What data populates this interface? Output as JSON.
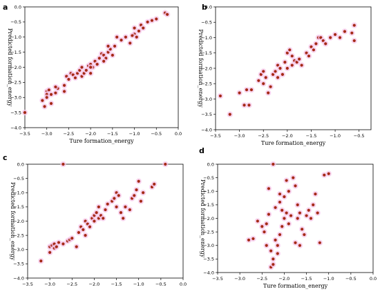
{
  "figure": {
    "panels": [
      "a",
      "b",
      "c",
      "d"
    ]
  },
  "chart_data": [
    {
      "panel": "a",
      "type": "scatter",
      "xlabel": "Ture formation_energy",
      "ylabel": "Predicted formation_energy",
      "xlim": [
        -3.5,
        0.0
      ],
      "ylim": [
        -4.0,
        0.0
      ],
      "xticks": [
        "−3.5",
        "−3.0",
        "−2.5",
        "−2.0",
        "−1.5",
        "−1.0",
        "−0.5",
        "0.0"
      ],
      "yticks": [
        "−4.0",
        "−3.5",
        "−3.0",
        "−2.5",
        "−2.0",
        "−1.5",
        "−1.0",
        "−0.5",
        "0.0"
      ],
      "color": "#a52a16",
      "x": [
        -3.5,
        -3.1,
        -3.05,
        -3.0,
        -3.0,
        -3.0,
        -2.95,
        -2.9,
        -2.9,
        -2.8,
        -2.75,
        -2.6,
        -2.55,
        -2.5,
        -2.45,
        -2.4,
        -2.35,
        -2.3,
        -2.25,
        -2.2,
        -2.2,
        -2.15,
        -2.1,
        -2.05,
        -2.0,
        -2.0,
        -1.95,
        -1.9,
        -1.85,
        -1.8,
        -1.75,
        -1.7,
        -1.65,
        -1.6,
        -1.55,
        -1.5,
        -1.45,
        -1.4,
        -1.3,
        -1.2,
        -1.1,
        -1.0,
        -1.0,
        -0.95,
        -0.9,
        -0.85,
        -0.8,
        -0.7,
        -0.6,
        -0.5,
        -0.3,
        -0.25,
        -1.6,
        -1.7,
        -2.6,
        -2.8,
        -2.0,
        -1.05
      ],
      "y": [
        -3.5,
        -3.1,
        -3.3,
        -2.8,
        -2.9,
        -3.0,
        -2.75,
        -2.9,
        -3.2,
        -2.85,
        -2.7,
        -2.8,
        -2.3,
        -2.4,
        -2.2,
        -2.25,
        -2.35,
        -2.2,
        -2.1,
        -2.3,
        -2.0,
        -2.2,
        -2.1,
        -1.95,
        -2.2,
        -1.9,
        -2.0,
        -1.8,
        -1.9,
        -1.7,
        -1.55,
        -1.6,
        -1.7,
        -1.5,
        -1.4,
        -1.6,
        -1.3,
        -1.0,
        -1.1,
        -1.0,
        -1.2,
        -0.7,
        -0.9,
        -1.0,
        -0.8,
        -0.6,
        -0.7,
        -0.5,
        -0.45,
        -0.4,
        -0.2,
        -0.25,
        -1.3,
        -1.8,
        -2.6,
        -2.65,
        -2.0,
        -0.95
      ]
    },
    {
      "panel": "b",
      "type": "scatter",
      "xlabel": "Ture formation_energy",
      "ylabel": "Predicted formation_energy",
      "xlim": [
        -3.5,
        -0.25
      ],
      "ylim": [
        -4.0,
        0.0
      ],
      "xticks": [
        "−3.5",
        "−3.0",
        "−2.5",
        "−2.0",
        "−1.5",
        "−1.0",
        "−0.5"
      ],
      "yticks": [
        "−4.0",
        "−3.5",
        "−3.0",
        "−2.5",
        "−2.0",
        "−1.5",
        "−1.0",
        "−0.5",
        "0.0"
      ],
      "color": "#a52a16",
      "x": [
        -3.4,
        -3.2,
        -3.0,
        -2.9,
        -2.85,
        -2.8,
        -2.75,
        -2.6,
        -2.55,
        -2.5,
        -2.5,
        -2.45,
        -2.4,
        -2.35,
        -2.3,
        -2.25,
        -2.2,
        -2.2,
        -2.15,
        -2.1,
        -2.05,
        -2.0,
        -2.0,
        -1.95,
        -1.9,
        -1.9,
        -1.85,
        -1.8,
        -1.75,
        -1.7,
        -1.6,
        -1.55,
        -1.5,
        -1.45,
        -1.4,
        -1.35,
        -1.3,
        -1.25,
        -1.2,
        -1.1,
        -1.0,
        -0.9,
        -0.8,
        -0.65,
        -0.6,
        -0.6
      ],
      "y": [
        -2.9,
        -3.5,
        -2.8,
        -3.2,
        -2.7,
        -3.2,
        -2.7,
        -2.4,
        -2.2,
        -2.1,
        -2.5,
        -2.3,
        -2.8,
        -2.6,
        -2.2,
        -2.1,
        -2.3,
        -1.9,
        -2.0,
        -2.2,
        -1.8,
        -1.5,
        -2.0,
        -1.4,
        -1.9,
        -1.6,
        -1.75,
        -1.8,
        -1.7,
        -1.9,
        -1.5,
        -1.6,
        -1.3,
        -1.4,
        -1.2,
        -1.0,
        -1.0,
        -1.1,
        -1.2,
        -1.0,
        -0.9,
        -1.0,
        -0.8,
        -0.85,
        -1.1,
        -0.6
      ]
    },
    {
      "panel": "c",
      "type": "scatter",
      "xlabel": "",
      "ylabel": "Predicted formation_energy",
      "xlim": [
        -3.5,
        0.0
      ],
      "ylim": [
        -4.0,
        0.0
      ],
      "xticks": [
        "−3.5",
        "−3.0",
        "−2.5",
        "−2.0",
        "−1.5",
        "−1.0",
        "−0.5",
        "0.0"
      ],
      "yticks": [
        "−4.0",
        "−3.5",
        "−3.0",
        "−2.5",
        "−2.0",
        "−1.5",
        "−1.0",
        "−0.5",
        "0.0"
      ],
      "color": "#a52a16",
      "x": [
        -3.2,
        -3.0,
        -3.0,
        -2.95,
        -2.9,
        -2.9,
        -2.85,
        -2.8,
        -2.7,
        -2.6,
        -2.55,
        -2.5,
        -2.4,
        -2.35,
        -2.3,
        -2.25,
        -2.2,
        -2.2,
        -2.15,
        -2.1,
        -2.05,
        -2.0,
        -2.0,
        -1.95,
        -1.9,
        -1.9,
        -1.85,
        -1.8,
        -1.75,
        -1.7,
        -1.6,
        -1.55,
        -1.5,
        -1.5,
        -1.45,
        -1.4,
        -1.35,
        -1.3,
        -1.2,
        -1.15,
        -1.1,
        -1.05,
        -1.0,
        -0.95,
        -0.9,
        -0.7,
        -0.65,
        -0.4,
        -2.7
      ],
      "y": [
        -3.4,
        -2.9,
        -3.1,
        -2.85,
        -2.95,
        -2.8,
        -2.9,
        -2.75,
        -2.8,
        -2.7,
        -2.65,
        -2.6,
        -2.9,
        -2.4,
        -2.2,
        -2.3,
        -2.5,
        -2.0,
        -2.1,
        -2.2,
        -1.9,
        -1.8,
        -2.0,
        -1.7,
        -1.5,
        -1.9,
        -1.8,
        -1.9,
        -1.6,
        -1.4,
        -1.3,
        -1.2,
        -1.5,
        -1.0,
        -1.1,
        -1.7,
        -1.9,
        -1.5,
        -1.6,
        -1.2,
        -1.1,
        -0.9,
        -0.6,
        -1.3,
        -1.0,
        -0.8,
        -0.7,
        0.0,
        0.0
      ]
    },
    {
      "panel": "d",
      "type": "scatter",
      "xlabel": "Ture formation_energy",
      "ylabel": "Predicted formation_energy",
      "xlim": [
        -3.5,
        0.0
      ],
      "ylim": [
        -4.0,
        0.0
      ],
      "xticks": [
        "−3.5",
        "−3.0",
        "−2.5",
        "−2.0",
        "−1.5",
        "−1.0",
        "−0.5",
        "0.0"
      ],
      "yticks": [
        "−4.0",
        "−3.5",
        "−3.0",
        "−2.5",
        "−2.0",
        "−1.5",
        "−1.0",
        "−0.5",
        "0.0"
      ],
      "color": "#a52a16",
      "x": [
        -2.8,
        -2.7,
        -2.6,
        -2.5,
        -2.45,
        -2.4,
        -2.4,
        -2.35,
        -2.3,
        -2.3,
        -2.25,
        -2.25,
        -2.2,
        -2.2,
        -2.15,
        -2.1,
        -2.1,
        -2.05,
        -2.05,
        -2.0,
        -2.0,
        -1.95,
        -1.9,
        -1.9,
        -1.85,
        -1.8,
        -1.75,
        -1.7,
        -1.7,
        -1.65,
        -1.6,
        -1.55,
        -1.5,
        -1.45,
        -1.4,
        -1.35,
        -1.3,
        -1.25,
        -1.2,
        -1.1,
        -1.0,
        -2.35,
        -2.25,
        -2.15,
        -1.75,
        -1.65,
        -2.1,
        -1.95
      ],
      "y": [
        -2.8,
        -2.75,
        -2.1,
        -2.3,
        -2.5,
        -2.2,
        -3.0,
        -1.85,
        -3.2,
        -3.8,
        -3.5,
        -3.7,
        -1.6,
        -2.8,
        -3.0,
        -2.6,
        -1.4,
        -1.7,
        -2.3,
        -1.2,
        -2.0,
        -1.8,
        -1.0,
        -2.2,
        -1.9,
        -0.5,
        -0.8,
        -1.5,
        -2.0,
        -1.8,
        -2.4,
        -2.6,
        -1.9,
        -1.7,
        -2.0,
        -1.5,
        -1.1,
        -1.8,
        -2.9,
        -0.4,
        -0.35,
        -0.9,
        0.0,
        -3.3,
        -2.9,
        -3.0,
        -1.1,
        -0.6
      ]
    }
  ]
}
